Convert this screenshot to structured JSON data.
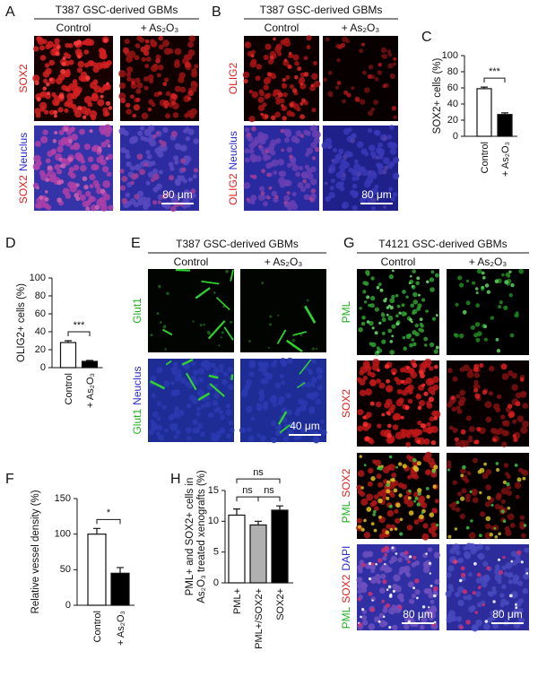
{
  "panels": {
    "A": {
      "letter": "A",
      "title": "T387 GSC-derived GBMs",
      "columns": [
        "Control",
        "+ As₂O₃"
      ],
      "rows": [
        [
          {
            "text": "SOX2",
            "color": "#e02020"
          }
        ],
        [
          {
            "text": "SOX2",
            "color": "#e02020"
          },
          {
            "text": "Neuclus",
            "color": "#2b2bd0"
          }
        ]
      ],
      "scale_bar": "80 μm"
    },
    "B": {
      "letter": "B",
      "title": "T387 GSC-derived GBMs",
      "columns": [
        "Control",
        "+ As₂O₃"
      ],
      "rows": [
        [
          {
            "text": "OLIG2",
            "color": "#e02020"
          }
        ],
        [
          {
            "text": "OLIG2",
            "color": "#e02020"
          },
          {
            "text": "Neuclus",
            "color": "#2b2bd0"
          }
        ]
      ],
      "scale_bar": "80 μm"
    },
    "E": {
      "letter": "E",
      "title": "T387 GSC-derived GBMs",
      "columns": [
        "Control",
        "+ As₂O₃"
      ],
      "rows": [
        [
          {
            "text": "Glut1",
            "color": "#22b022"
          }
        ],
        [
          {
            "text": "Glut1",
            "color": "#22b022"
          },
          {
            "text": "Neuclus",
            "color": "#2b2bd0"
          }
        ]
      ],
      "scale_bar": "40 μm"
    },
    "G": {
      "letter": "G",
      "title": "T4121 GSC-derived GBMs",
      "columns": [
        "Control",
        "+ As₂O₃"
      ],
      "rows": [
        [
          {
            "text": "PML",
            "color": "#22b022"
          }
        ],
        [
          {
            "text": "SOX2",
            "color": "#e02020"
          }
        ],
        [
          {
            "text": "PML",
            "color": "#22b022"
          },
          {
            "text": "SOX2",
            "color": "#e02020"
          }
        ],
        [
          {
            "text": "PML",
            "color": "#22b022"
          },
          {
            "text": "SOX2",
            "color": "#e02020"
          },
          {
            "text": "DAPI",
            "color": "#2b2bd0"
          }
        ]
      ],
      "scale_bars": [
        "80 μm",
        "80 μm"
      ]
    }
  },
  "chart_data": [
    {
      "type": "bar",
      "letter": "C",
      "ylabel": "SOX2+ cells (%)",
      "categories": [
        "Control",
        "+ As₂O₃"
      ],
      "values": [
        59,
        27
      ],
      "errors": [
        2,
        2
      ],
      "colors": [
        "#ffffff",
        "#000000"
      ],
      "ylim": [
        0,
        100
      ],
      "yticks": [
        0,
        20,
        40,
        60,
        80,
        100
      ],
      "annotations": [
        "***"
      ]
    },
    {
      "type": "bar",
      "letter": "D",
      "ylabel": "OLIG2+ cells (%)",
      "categories": [
        "Control",
        "+ As₂O₃"
      ],
      "values": [
        28,
        7
      ],
      "errors": [
        2,
        1
      ],
      "colors": [
        "#ffffff",
        "#000000"
      ],
      "ylim": [
        0,
        100
      ],
      "yticks": [
        0,
        20,
        40,
        60,
        80,
        100
      ],
      "annotations": [
        "***"
      ]
    },
    {
      "type": "bar",
      "letter": "F",
      "ylabel": "Relative vessel density (%)",
      "categories": [
        "Control",
        "+ As₂O₃"
      ],
      "values": [
        100,
        45
      ],
      "errors": [
        8,
        8
      ],
      "colors": [
        "#ffffff",
        "#000000"
      ],
      "ylim": [
        0,
        150
      ],
      "yticks": [
        0,
        50,
        100,
        150
      ],
      "annotations": [
        "*"
      ]
    },
    {
      "type": "bar",
      "letter": "H",
      "ylabel": [
        "PML+ and SOX2+ cells in",
        "As₂O₃ treated xenografts (%)"
      ],
      "categories": [
        "PML+",
        "PML+/SOX2+",
        "SOX2+"
      ],
      "values": [
        11,
        9.4,
        11.8
      ],
      "errors": [
        1,
        0.6,
        0.7
      ],
      "colors": [
        "#ffffff",
        "#b0b0b0",
        "#000000"
      ],
      "ylim": [
        0,
        15
      ],
      "yticks": [
        0,
        5,
        10,
        15
      ],
      "annotations": [
        "ns",
        "ns",
        "ns"
      ]
    }
  ]
}
